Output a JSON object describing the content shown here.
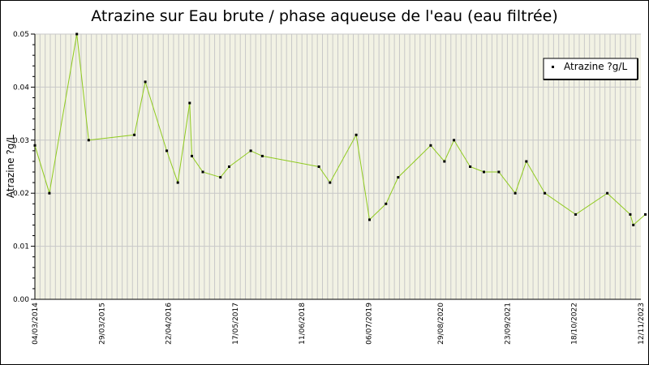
{
  "chart_data": {
    "type": "line",
    "title": "Atrazine sur Eau brute / phase aqueuse de l'eau (eau filtrée)",
    "xlabel": "",
    "ylabel": "Atrazine ?g/L",
    "ylim": [
      0,
      0.05
    ],
    "yticks": [
      "0.00",
      "0.01",
      "0.02",
      "0.03",
      "0.04",
      "0.05"
    ],
    "xlim": [
      "2014-03-04",
      "2023-11-12"
    ],
    "xticks": [
      "04/03/2014",
      "29/03/2015",
      "22/04/2016",
      "17/05/2017",
      "11/06/2018",
      "06/07/2019",
      "29/08/2020",
      "23/09/2021",
      "18/10/2022",
      "12/11/2023"
    ],
    "grid": true,
    "legend_position": "top-right",
    "colors": {
      "line": "#8fca1e",
      "marker": "#000000",
      "grid": "#c8c8c8",
      "plot_bg": "#f2f2e4"
    },
    "series": [
      {
        "name": "Atrazine ?g/L",
        "x": [
          "2014-03-04",
          "2014-05-28",
          "2014-11-04",
          "2015-01-12",
          "2015-10-06",
          "2015-12-09",
          "2016-04-12",
          "2016-06-16",
          "2016-08-24",
          "2016-09-06",
          "2016-11-09",
          "2017-02-20",
          "2017-04-12",
          "2017-08-16",
          "2017-10-23",
          "2018-09-18",
          "2018-11-22",
          "2019-04-24",
          "2019-07-11",
          "2019-10-15",
          "2019-12-25",
          "2020-07-02",
          "2020-09-20",
          "2020-11-15",
          "2021-02-18",
          "2021-05-09",
          "2021-08-04",
          "2021-11-08",
          "2022-01-12",
          "2022-04-30",
          "2022-10-27",
          "2023-04-30",
          "2023-09-11",
          "2023-09-29",
          "2023-12-08"
        ],
        "y": [
          0.029,
          0.02,
          0.05,
          0.03,
          0.031,
          0.041,
          0.028,
          0.022,
          0.037,
          0.027,
          0.024,
          0.023,
          0.025,
          0.028,
          0.027,
          0.025,
          0.022,
          0.031,
          0.015,
          0.018,
          0.023,
          0.029,
          0.026,
          0.03,
          0.025,
          0.024,
          0.024,
          0.02,
          0.026,
          0.02,
          0.016,
          0.02,
          0.016,
          0.014,
          0.016
        ]
      }
    ]
  }
}
